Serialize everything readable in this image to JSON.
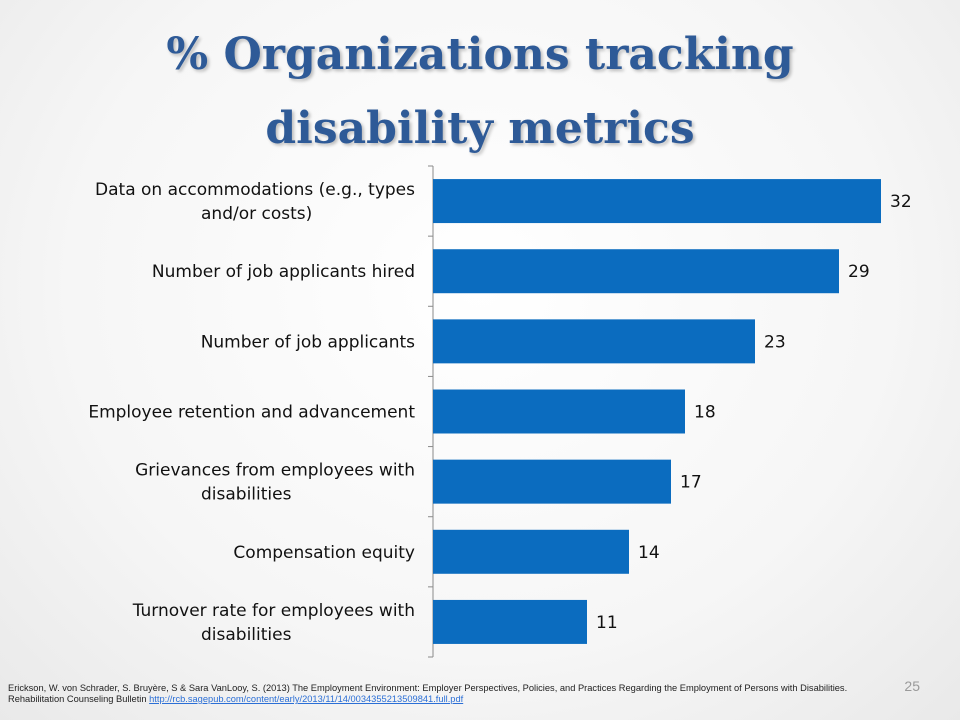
{
  "slide": {
    "title": "% Organizations tracking disability metrics",
    "page_number": "25",
    "citation_text": "Erickson, W. von Schrader, S. Bruyère, S & Sara VanLooy, S. (2013) The Employment Environment: Employer Perspectives, Policies, and Practices Regarding the Employment of Persons with Disabilities. Rehabilitation Counseling Bulletin",
    "citation_link": "http://rcb.sagepub.com/content/early/2013/11/14/0034355213509841.full.pdf"
  },
  "chart_data": {
    "type": "bar",
    "orientation": "horizontal",
    "title": "% Organizations tracking disability metrics",
    "categories": [
      "Data on accommodations (e.g., types and/or costs)",
      "Number of job applicants hired",
      "Number of job applicants",
      "Employee retention and advancement",
      "Grievances from employees with disabilities",
      "Compensation equity",
      "Turnover rate for employees with disabilities"
    ],
    "category_lines": [
      [
        "Data on accommodations (e.g., types",
        "and/or costs)"
      ],
      [
        "Number of job applicants hired"
      ],
      [
        "Number of job applicants"
      ],
      [
        "Employee retention and advancement"
      ],
      [
        "Grievances from employees with",
        "disabilities"
      ],
      [
        "Compensation equity"
      ],
      [
        "Turnover rate for employees with",
        "disabilities"
      ]
    ],
    "values": [
      32,
      29,
      23,
      18,
      17,
      14,
      11
    ],
    "data_labels": [
      "32",
      "29",
      "23",
      "18",
      "17",
      "14",
      "11"
    ],
    "xlim": [
      0,
      35
    ],
    "xlabel": "",
    "ylabel": "",
    "legend": "none",
    "grid": false,
    "bar_color": "#0b6cbf"
  }
}
